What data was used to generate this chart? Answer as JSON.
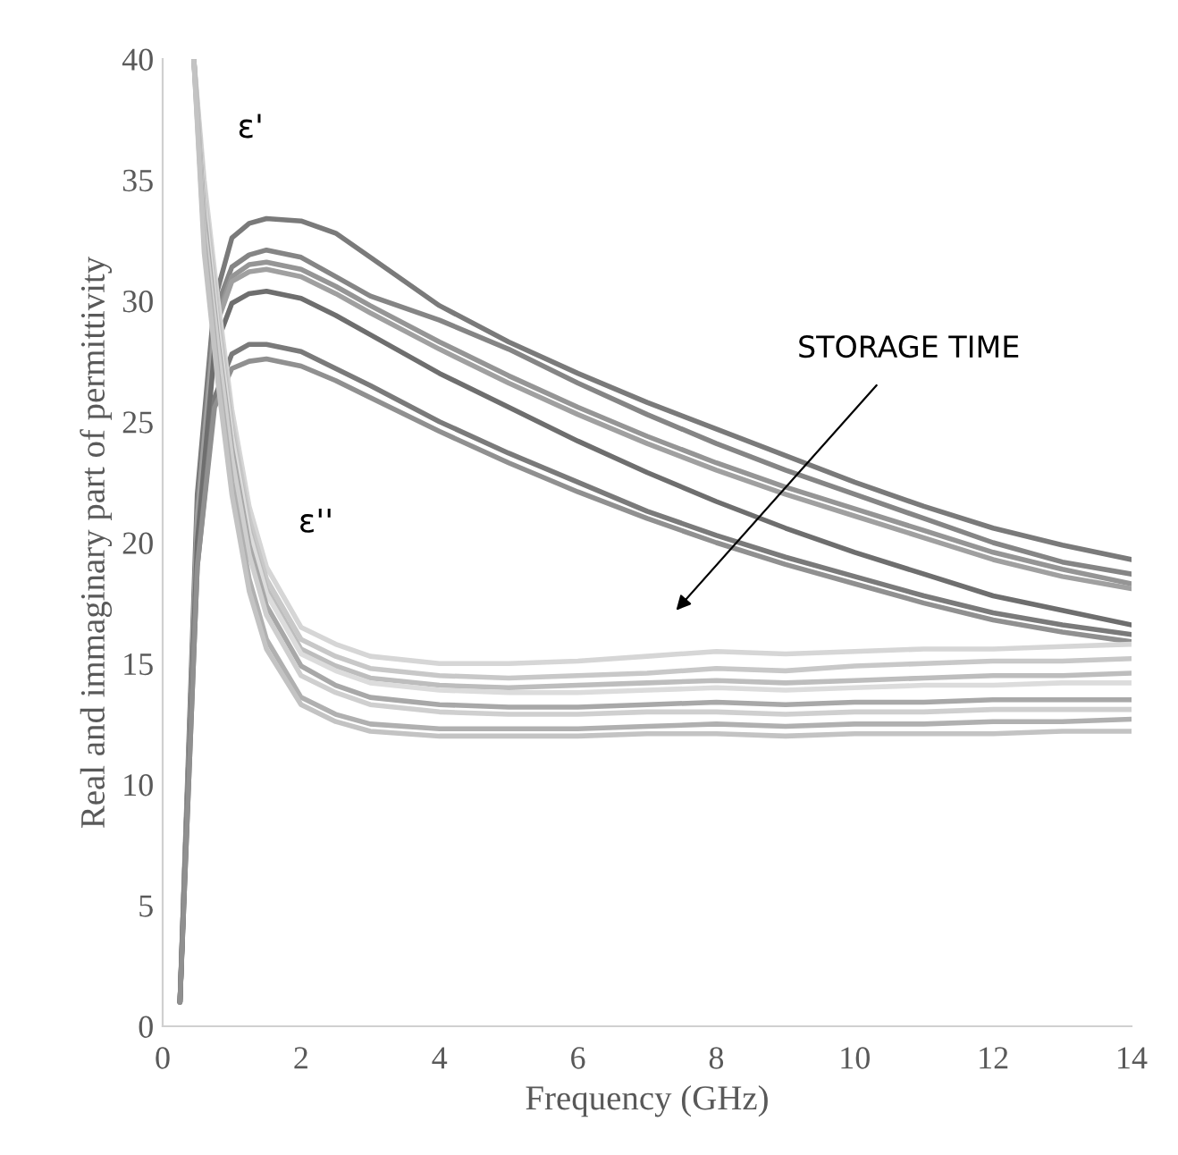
{
  "chart_data": {
    "type": "line",
    "xlabel": "Frequency (GHz)",
    "ylabel": "Real and immaginary part of permittivity",
    "xlim": [
      0,
      14
    ],
    "ylim": [
      0,
      40
    ],
    "xticks": [
      0,
      2,
      4,
      6,
      8,
      10,
      12,
      14
    ],
    "yticks": [
      0,
      5,
      10,
      15,
      20,
      25,
      30,
      35,
      40
    ],
    "grid": false,
    "legend": false,
    "marker": "none",
    "line_style": "solid",
    "annotations": [
      "ε'",
      "ε''",
      "STORAGE TIME"
    ],
    "series": [
      {
        "color": "#7a7a7a",
        "x": [
          0.25,
          0.5,
          0.75,
          1,
          1.25,
          1.5,
          2,
          2.5,
          3,
          4,
          5,
          6,
          7,
          8,
          9,
          10,
          11,
          12,
          13,
          14
        ],
        "values": [
          1,
          22,
          30,
          32.6,
          33.2,
          33.4,
          33.3,
          32.8,
          31.8,
          29.8,
          28.3,
          27,
          25.8,
          24.7,
          23.6,
          22.5,
          21.5,
          20.6,
          19.9,
          19.3
        ]
      },
      {
        "color": "#858585",
        "x": [
          0.25,
          0.5,
          0.75,
          1,
          1.25,
          1.5,
          2,
          2.5,
          3,
          4,
          5,
          6,
          7,
          8,
          9,
          10,
          11,
          12,
          13,
          14
        ],
        "values": [
          1,
          21,
          29.5,
          31.4,
          31.9,
          32.1,
          31.8,
          31,
          30.2,
          29.2,
          28,
          26.6,
          25.3,
          24.1,
          23,
          22,
          21,
          20,
          19.2,
          18.7
        ]
      },
      {
        "color": "#959595",
        "x": [
          0.25,
          0.5,
          0.75,
          1,
          1.25,
          1.5,
          2,
          2.5,
          3,
          4,
          5,
          6,
          7,
          8,
          9,
          10,
          11,
          12,
          13,
          14
        ],
        "values": [
          1,
          21,
          29,
          31,
          31.5,
          31.6,
          31.3,
          30.6,
          29.8,
          28.3,
          26.9,
          25.6,
          24.4,
          23.3,
          22.3,
          21.4,
          20.5,
          19.6,
          18.9,
          18.3
        ]
      },
      {
        "color": "#a0a0a0",
        "x": [
          0.25,
          0.5,
          0.75,
          1,
          1.25,
          1.5,
          2,
          2.5,
          3,
          4,
          5,
          6,
          7,
          8,
          9,
          10,
          11,
          12,
          13,
          14
        ],
        "values": [
          1,
          21,
          28.8,
          30.8,
          31.2,
          31.3,
          31,
          30.3,
          29.5,
          28,
          26.6,
          25.3,
          24.1,
          23,
          22,
          21.1,
          20.2,
          19.3,
          18.6,
          18.1
        ]
      },
      {
        "color": "#6e6e6e",
        "x": [
          0.25,
          0.5,
          0.75,
          1,
          1.25,
          1.5,
          2,
          2.5,
          3,
          4,
          5,
          6,
          7,
          8,
          9,
          10,
          11,
          12,
          13,
          14
        ],
        "values": [
          1,
          20,
          28,
          29.9,
          30.3,
          30.4,
          30.1,
          29.4,
          28.6,
          27,
          25.6,
          24.2,
          22.9,
          21.7,
          20.6,
          19.6,
          18.7,
          17.8,
          17.2,
          16.6
        ]
      },
      {
        "color": "#7a7a7a",
        "x": [
          0.25,
          0.5,
          0.75,
          1,
          1.25,
          1.5,
          2,
          2.5,
          3,
          4,
          5,
          6,
          7,
          8,
          9,
          10,
          11,
          12,
          13,
          14
        ],
        "values": [
          1,
          19,
          26,
          27.8,
          28.2,
          28.2,
          27.9,
          27.2,
          26.5,
          25,
          23.7,
          22.5,
          21.3,
          20.3,
          19.4,
          18.6,
          17.8,
          17.1,
          16.6,
          16.2
        ]
      },
      {
        "color": "#909090",
        "x": [
          0.25,
          0.5,
          0.75,
          1,
          1.25,
          1.5,
          2,
          2.5,
          3,
          4,
          5,
          6,
          7,
          8,
          9,
          10,
          11,
          12,
          13,
          14
        ],
        "values": [
          1,
          19,
          25.6,
          27.2,
          27.5,
          27.6,
          27.3,
          26.7,
          26,
          24.6,
          23.3,
          22.1,
          21,
          20,
          19.1,
          18.3,
          17.5,
          16.8,
          16.3,
          15.9
        ]
      },
      {
        "color": "#d6d6d6",
        "x": [
          0.45,
          0.6,
          0.8,
          1,
          1.25,
          1.5,
          2,
          2.5,
          3,
          4,
          5,
          6,
          7,
          8,
          9,
          10,
          11,
          12,
          13,
          14
        ],
        "values": [
          40,
          35,
          30,
          25.5,
          21.5,
          19,
          16.5,
          15.8,
          15.3,
          15,
          15,
          15.1,
          15.3,
          15.5,
          15.4,
          15.5,
          15.6,
          15.6,
          15.7,
          15.8
        ]
      },
      {
        "color": "#c8c8c8",
        "x": [
          0.45,
          0.6,
          0.8,
          1,
          1.25,
          1.5,
          2,
          2.5,
          3,
          4,
          5,
          6,
          7,
          8,
          9,
          10,
          11,
          12,
          13,
          14
        ],
        "values": [
          40,
          34.5,
          29.5,
          25,
          21,
          18.5,
          16,
          15.3,
          14.8,
          14.5,
          14.4,
          14.5,
          14.6,
          14.8,
          14.7,
          14.9,
          15,
          15.1,
          15.1,
          15.2
        ]
      },
      {
        "color": "#bdbdbd",
        "x": [
          0.45,
          0.6,
          0.8,
          1,
          1.25,
          1.5,
          2,
          2.5,
          3,
          4,
          5,
          6,
          7,
          8,
          9,
          10,
          11,
          12,
          13,
          14
        ],
        "values": [
          40,
          34,
          29,
          24.6,
          20.6,
          18.1,
          15.6,
          14.9,
          14.4,
          14.1,
          14,
          14.1,
          14.2,
          14.3,
          14.2,
          14.3,
          14.4,
          14.5,
          14.5,
          14.6
        ]
      },
      {
        "color": "#dcdcdc",
        "x": [
          0.45,
          0.6,
          0.8,
          1,
          1.25,
          1.5,
          2,
          2.5,
          3,
          4,
          5,
          6,
          7,
          8,
          9,
          10,
          11,
          12,
          13,
          14
        ],
        "values": [
          40,
          34,
          28.8,
          24.4,
          20.4,
          17.9,
          15.4,
          14.7,
          14.2,
          13.9,
          13.8,
          13.8,
          13.9,
          14,
          13.9,
          14,
          14.1,
          14.1,
          14.2,
          14.2
        ]
      },
      {
        "color": "#a8a8a8",
        "x": [
          0.45,
          0.6,
          0.8,
          1,
          1.25,
          1.5,
          2,
          2.5,
          3,
          4,
          5,
          6,
          7,
          8,
          9,
          10,
          11,
          12,
          13,
          14
        ],
        "values": [
          40,
          33.5,
          28.3,
          23.9,
          19.9,
          17.4,
          14.9,
          14.1,
          13.6,
          13.3,
          13.2,
          13.2,
          13.3,
          13.4,
          13.3,
          13.4,
          13.4,
          13.5,
          13.5,
          13.5
        ]
      },
      {
        "color": "#cfcfcf",
        "x": [
          0.45,
          0.6,
          0.8,
          1,
          1.25,
          1.5,
          2,
          2.5,
          3,
          4,
          5,
          6,
          7,
          8,
          9,
          10,
          11,
          12,
          13,
          14
        ],
        "values": [
          40,
          33,
          28,
          23.5,
          19.5,
          17,
          14.5,
          13.8,
          13.3,
          13,
          12.9,
          12.9,
          13,
          13,
          12.9,
          13,
          13,
          13.1,
          13.1,
          13.1
        ]
      },
      {
        "color": "#b0b0b0",
        "x": [
          0.45,
          0.6,
          0.8,
          1,
          1.25,
          1.5,
          2,
          2.5,
          3,
          4,
          5,
          6,
          7,
          8,
          9,
          10,
          11,
          12,
          13,
          14
        ],
        "values": [
          40,
          32.5,
          27,
          22.5,
          18.5,
          16,
          13.6,
          12.9,
          12.5,
          12.3,
          12.3,
          12.3,
          12.4,
          12.5,
          12.4,
          12.5,
          12.5,
          12.6,
          12.6,
          12.7
        ]
      },
      {
        "color": "#c3c3c3",
        "x": [
          0.45,
          0.6,
          0.8,
          1,
          1.25,
          1.5,
          2,
          2.5,
          3,
          4,
          5,
          6,
          7,
          8,
          9,
          10,
          11,
          12,
          13,
          14
        ],
        "values": [
          40,
          32,
          26.6,
          22,
          18,
          15.6,
          13.3,
          12.6,
          12.2,
          12,
          12,
          12,
          12.1,
          12.1,
          12,
          12.1,
          12.1,
          12.1,
          12.2,
          12.2
        ]
      }
    ]
  }
}
